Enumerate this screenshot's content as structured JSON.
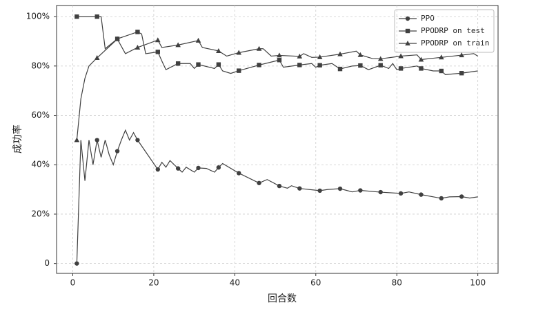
{
  "chart_data": {
    "type": "line",
    "xlabel": "回合数",
    "ylabel": "成功率",
    "xlim": [
      -4,
      105
    ],
    "ylim": [
      -4,
      104.5
    ],
    "xticks": [
      0,
      20,
      40,
      60,
      80,
      100
    ],
    "yticks": [
      0,
      {
        "value": 20,
        "label": "20%"
      },
      {
        "value": 40,
        "label": "40%"
      },
      {
        "value": 60,
        "label": "60%"
      },
      {
        "value": 80,
        "label": "80%"
      },
      {
        "value": 100,
        "label": "100%"
      }
    ],
    "grid": true,
    "legend": "upper right",
    "series": [
      {
        "name": "PPO",
        "color": "#404040",
        "marker": "circle",
        "x": [
          1,
          2,
          3,
          4,
          5,
          6,
          7,
          8,
          9,
          10,
          11,
          12,
          13,
          14,
          15,
          16,
          21,
          22,
          23,
          24,
          26,
          27,
          28,
          30,
          31,
          33,
          35,
          36,
          37,
          41,
          46,
          48,
          51,
          53,
          54,
          56,
          61,
          63,
          66,
          69,
          71,
          76,
          81,
          83,
          86,
          91,
          93,
          96,
          98,
          100
        ],
        "values": [
          0,
          50,
          33.5,
          50,
          40,
          50,
          43,
          50,
          44,
          40,
          45.5,
          50,
          54,
          50,
          53,
          50,
          38.1,
          41,
          39,
          41.7,
          38.5,
          37,
          39,
          37,
          38.7,
          38.5,
          37,
          38.9,
          40.5,
          36.6,
          32.6,
          34,
          31.4,
          30.5,
          31.5,
          30.4,
          29.5,
          30,
          30.3,
          29,
          29.6,
          28.9,
          28.4,
          29,
          27.9,
          26.4,
          27,
          27.1,
          26.5,
          27
        ]
      },
      {
        "name": "PPODRP on test",
        "color": "#404040",
        "marker": "square",
        "x": [
          1,
          6,
          7,
          8,
          11,
          16,
          17,
          18,
          21,
          22,
          23,
          26,
          29,
          30,
          31,
          35,
          36,
          37,
          39,
          41,
          46,
          51,
          52,
          56,
          59,
          60,
          61,
          64,
          66,
          69,
          71,
          73,
          76,
          78,
          79,
          80,
          81,
          85,
          86,
          89,
          91,
          92,
          96,
          100
        ],
        "values": [
          100,
          100,
          100,
          87,
          91,
          93.8,
          93,
          85,
          85.7,
          82,
          78.5,
          81,
          81,
          79,
          80.6,
          79,
          80.6,
          78,
          77,
          78.1,
          80.4,
          82.4,
          79.5,
          80.4,
          81,
          79.5,
          80.3,
          81,
          78.8,
          80,
          80.2,
          78.5,
          80.3,
          79,
          81,
          78.5,
          79,
          80,
          79,
          78,
          78,
          76.5,
          77.1,
          78
        ]
      },
      {
        "name": "PPODRP on train",
        "color": "#404040",
        "marker": "triangle",
        "x": [
          1,
          2,
          3,
          4,
          6,
          11,
          13,
          16,
          21,
          22,
          26,
          31,
          32,
          36,
          38,
          41,
          46,
          47,
          49,
          51,
          56,
          57,
          59,
          61,
          66,
          70,
          71,
          74,
          76,
          81,
          85,
          86,
          91,
          96,
          99,
          100
        ],
        "values": [
          50,
          66.7,
          75,
          80,
          83.3,
          90.9,
          85,
          87.5,
          90.5,
          87.5,
          88.5,
          90.3,
          87.5,
          86.1,
          84,
          85.4,
          87,
          87,
          84,
          84.3,
          83.9,
          85,
          83.5,
          83.6,
          84.8,
          86,
          84.5,
          83,
          82.9,
          84,
          84.5,
          82.6,
          83.5,
          84.4,
          85,
          84
        ]
      }
    ]
  }
}
